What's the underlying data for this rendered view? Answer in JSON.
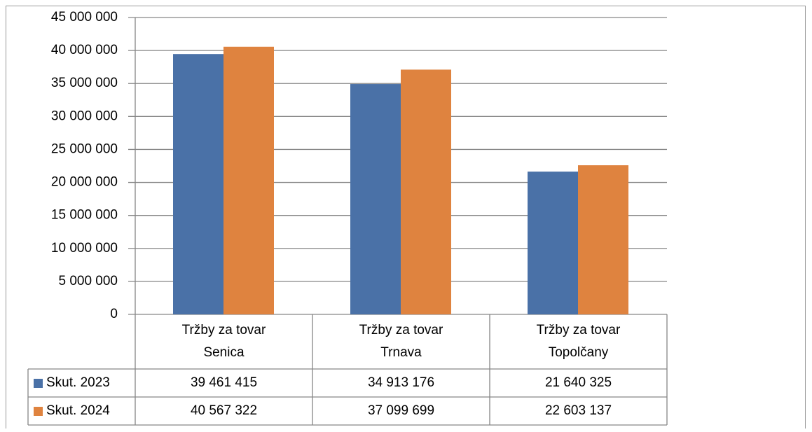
{
  "chart_data": {
    "type": "bar",
    "categories": [
      "Tržby za tovar Senica",
      "Tržby za tovar Trnava",
      "Tržby za tovar Topolčany"
    ],
    "series": [
      {
        "name": "Skut. 2023",
        "color": "#4a71a7",
        "values": [
          39461415,
          34913176,
          21640325
        ],
        "value_labels": [
          "39 461 415",
          "34 913 176",
          "21 640 325"
        ]
      },
      {
        "name": "Skut. 2024",
        "color": "#df833f",
        "values": [
          40567322,
          37099699,
          22603137
        ],
        "value_labels": [
          "40 567 322",
          "37 099 699",
          "22 603 137"
        ]
      }
    ],
    "ylim": [
      0,
      45000000
    ],
    "yticks": [
      0,
      {
        "value": 5000000,
        "label": "5 000 000"
      },
      {
        "value": 10000000,
        "label": "10 000 000"
      },
      {
        "value": 15000000,
        "label": "15 000 000"
      },
      {
        "value": 20000000,
        "label": "20 000 000"
      },
      {
        "value": 25000000,
        "label": "25 000 000"
      },
      {
        "value": 30000000,
        "label": "30 000 000"
      },
      {
        "value": 35000000,
        "label": "35 000 000"
      },
      {
        "value": 40000000,
        "label": "40 000 000"
      },
      {
        "value": 45000000,
        "label": "45 000 000"
      }
    ],
    "grid": true
  }
}
